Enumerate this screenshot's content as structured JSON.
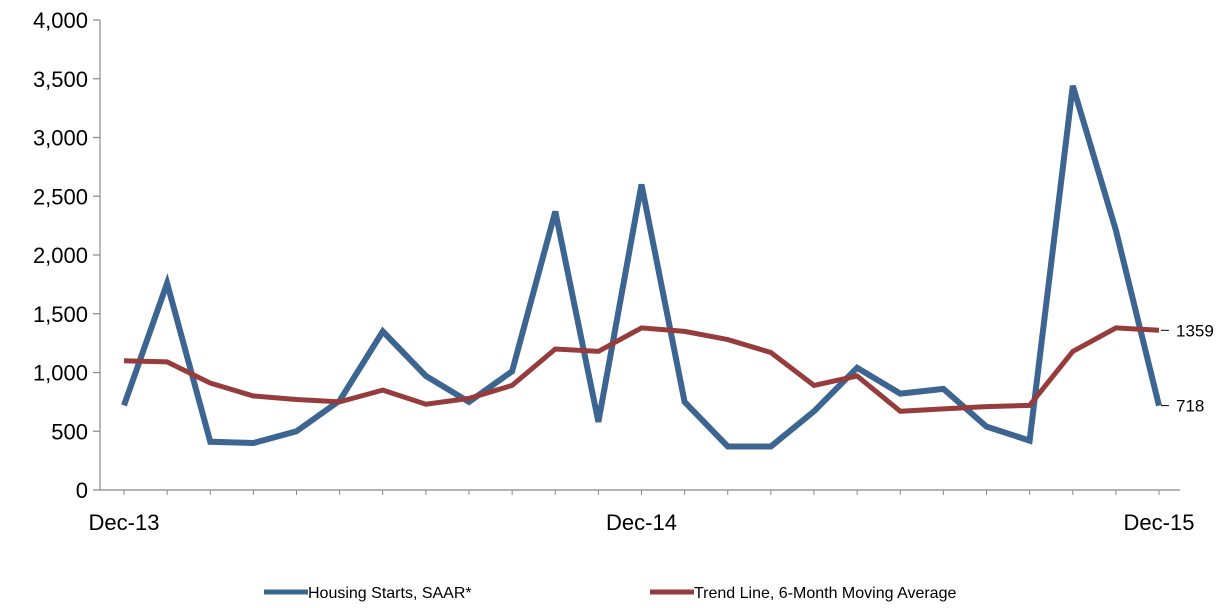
{
  "chart_data": {
    "type": "line",
    "title": "",
    "xlabel": "",
    "ylabel": "",
    "ylim": [
      0,
      4000
    ],
    "yticks": [
      "0",
      "500",
      "1,000",
      "1,500",
      "2,000",
      "2,500",
      "3,000",
      "3,500",
      "4,000"
    ],
    "ytick_values": [
      0,
      500,
      1000,
      1500,
      2000,
      2500,
      3000,
      3500,
      4000
    ],
    "x": [
      "Dec-13",
      "Jan-14",
      "Feb-14",
      "Mar-14",
      "Apr-14",
      "May-14",
      "Jun-14",
      "Jul-14",
      "Aug-14",
      "Sep-14",
      "Oct-14",
      "Nov-14",
      "Dec-14",
      "Jan-15",
      "Feb-15",
      "Mar-15",
      "Apr-15",
      "May-15",
      "Jun-15",
      "Jul-15",
      "Aug-15",
      "Sep-15",
      "Oct-15",
      "Nov-15",
      "Dec-15"
    ],
    "xticks": [
      {
        "label": "Dec-13",
        "index": 0
      },
      {
        "label": "Dec-14",
        "index": 12
      },
      {
        "label": "Dec-15",
        "index": 24
      }
    ],
    "grid": false,
    "legend_position": "bottom",
    "series": [
      {
        "name": "Housing Starts, SAAR*",
        "color": "#3c6591",
        "values": [
          720,
          1760,
          410,
          400,
          500,
          760,
          1350,
          970,
          750,
          1010,
          2370,
          580,
          2600,
          750,
          370,
          370,
          670,
          1040,
          820,
          860,
          540,
          420,
          3440,
          2210,
          718
        ]
      },
      {
        "name": "Trend Line, 6-Month Moving Average",
        "color": "#963c3c",
        "values": [
          1100,
          1090,
          910,
          800,
          770,
          750,
          850,
          730,
          780,
          890,
          1200,
          1180,
          1380,
          1350,
          1280,
          1170,
          890,
          970,
          670,
          690,
          710,
          720,
          1180,
          1380,
          1359
        ]
      }
    ],
    "end_labels": [
      {
        "series": 1,
        "text": "1359"
      },
      {
        "series": 0,
        "text": "718"
      }
    ]
  }
}
